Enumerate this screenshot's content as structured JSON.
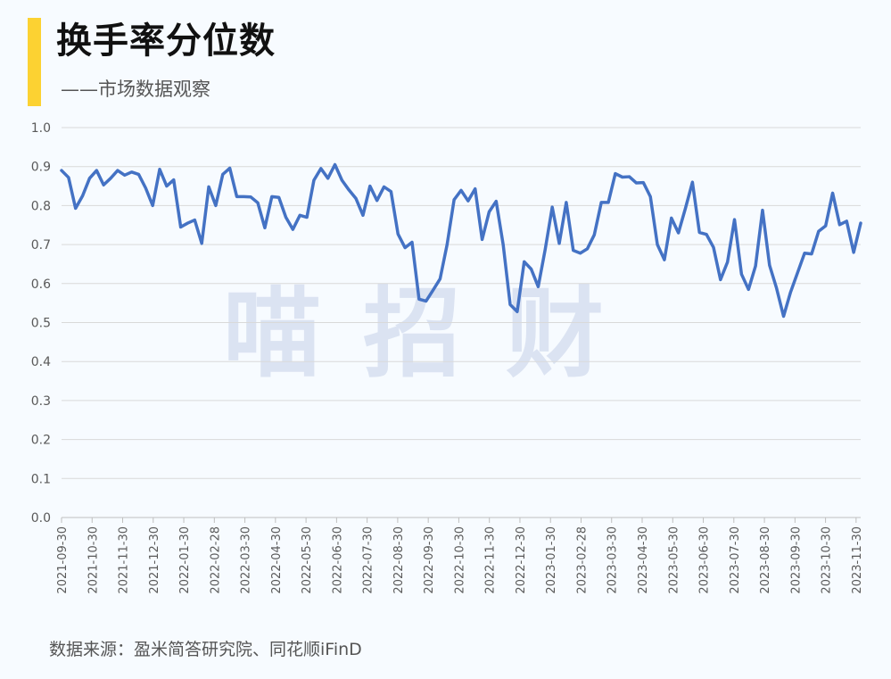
{
  "header": {
    "title": "换手率分位数",
    "subtitle": "——市场数据观察"
  },
  "watermark": [
    "喵",
    "招",
    "财"
  ],
  "footer": {
    "source": "数据来源：盈米简答研究院、同花顺iFinD"
  },
  "colors": {
    "accent": "#fcd232",
    "line": "#4472c4",
    "grid": "#d9d9d9",
    "background": "#f7fbff"
  },
  "chart_data": {
    "type": "line",
    "title": "",
    "xlabel": "",
    "ylabel": "",
    "ylim": [
      0,
      1.0
    ],
    "y_ticks": [
      "0.0",
      "0.1",
      "0.2",
      "0.3",
      "0.4",
      "0.5",
      "0.6",
      "0.7",
      "0.8",
      "0.9",
      "1.0"
    ],
    "x_tick_labels": [
      "2021-09-30",
      "2021-10-30",
      "2021-11-30",
      "2021-12-30",
      "2022-01-30",
      "2022-02-28",
      "2022-03-30",
      "2022-04-30",
      "2022-05-30",
      "2022-06-30",
      "2022-07-30",
      "2022-08-30",
      "2022-09-30",
      "2022-10-30",
      "2022-11-30",
      "2022-12-30",
      "2023-01-30",
      "2023-02-28",
      "2023-03-30",
      "2023-04-30",
      "2023-05-30",
      "2023-06-30",
      "2023-07-30",
      "2023-08-30",
      "2023-09-30",
      "2023-10-30",
      "2023-11-30"
    ],
    "grid": true,
    "legend": "none",
    "series": [
      {
        "values": [
          0.89,
          0.872,
          0.793,
          0.825,
          0.87,
          0.89,
          0.853,
          0.87,
          0.89,
          0.878,
          0.886,
          0.88,
          0.845,
          0.8,
          0.893,
          0.85,
          0.866,
          0.745,
          0.755,
          0.763,
          0.703,
          0.848,
          0.8,
          0.88,
          0.896,
          0.823,
          0.823,
          0.822,
          0.807,
          0.743,
          0.823,
          0.821,
          0.77,
          0.739,
          0.775,
          0.77,
          0.865,
          0.895,
          0.87,
          0.905,
          0.865,
          0.84,
          0.818,
          0.775,
          0.85,
          0.813,
          0.848,
          0.836,
          0.727,
          0.692,
          0.706,
          0.56,
          0.555,
          0.583,
          0.612,
          0.7,
          0.815,
          0.839,
          0.812,
          0.843,
          0.713,
          0.784,
          0.811,
          0.7,
          0.546,
          0.528,
          0.656,
          0.637,
          0.592,
          0.688,
          0.796,
          0.703,
          0.808,
          0.685,
          0.678,
          0.689,
          0.725,
          0.808,
          0.808,
          0.882,
          0.873,
          0.874,
          0.858,
          0.859,
          0.823,
          0.7,
          0.661,
          0.768,
          0.73,
          0.793,
          0.86,
          0.731,
          0.726,
          0.693,
          0.61,
          0.655,
          0.764,
          0.624,
          0.585,
          0.645,
          0.788,
          0.647,
          0.588,
          0.516,
          0.578,
          0.628,
          0.678,
          0.676,
          0.734,
          0.748,
          0.832,
          0.751,
          0.76,
          0.68,
          0.755
        ]
      }
    ]
  }
}
